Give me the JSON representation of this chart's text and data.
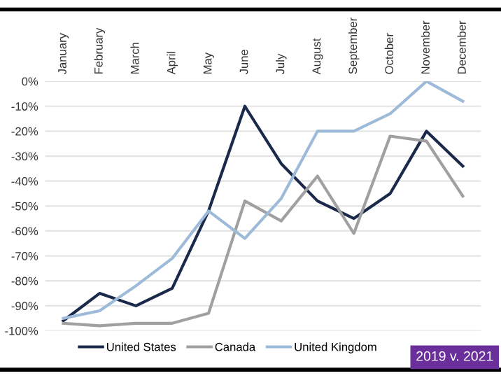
{
  "chart_data": {
    "type": "line",
    "categories": [
      "January",
      "February",
      "March",
      "April",
      "May",
      "June",
      "July",
      "August",
      "September",
      "October",
      "November",
      "December"
    ],
    "series": [
      {
        "name": "United States",
        "color": "#1b2a4a",
        "values": [
          -96,
          -85,
          -90,
          -83,
          -52,
          -10,
          -33,
          -48,
          -55,
          -45,
          -20,
          -34
        ]
      },
      {
        "name": "Canada",
        "color": "#a0a0a0",
        "values": [
          -97,
          -98,
          -97,
          -97,
          -93,
          -48,
          -56,
          -38,
          -61,
          -22,
          -24,
          -46
        ]
      },
      {
        "name": "United Kingdom",
        "color": "#9dbbd9",
        "values": [
          -95,
          -92,
          -82,
          -71,
          -52,
          -63,
          -47,
          -20,
          -20,
          -13,
          0,
          -8
        ]
      }
    ],
    "ylim": [
      -100,
      0
    ],
    "yticks": [
      {
        "value": 0,
        "label": "0%"
      },
      {
        "value": -10,
        "label": "-10%"
      },
      {
        "value": -20,
        "label": "-20%"
      },
      {
        "value": -30,
        "label": "-30%"
      },
      {
        "value": -40,
        "label": "-40%"
      },
      {
        "value": -50,
        "label": "-50%"
      },
      {
        "value": -60,
        "label": "-60%"
      },
      {
        "value": -70,
        "label": "-70%"
      },
      {
        "value": -80,
        "label": "-80%"
      },
      {
        "value": -90,
        "label": "-90%"
      },
      {
        "value": -100,
        "label": "-100%"
      }
    ],
    "grid": "y",
    "legend": "bottom",
    "marker": "none",
    "line_style": "solid",
    "annotations": [
      "2019 v. 2021"
    ]
  }
}
